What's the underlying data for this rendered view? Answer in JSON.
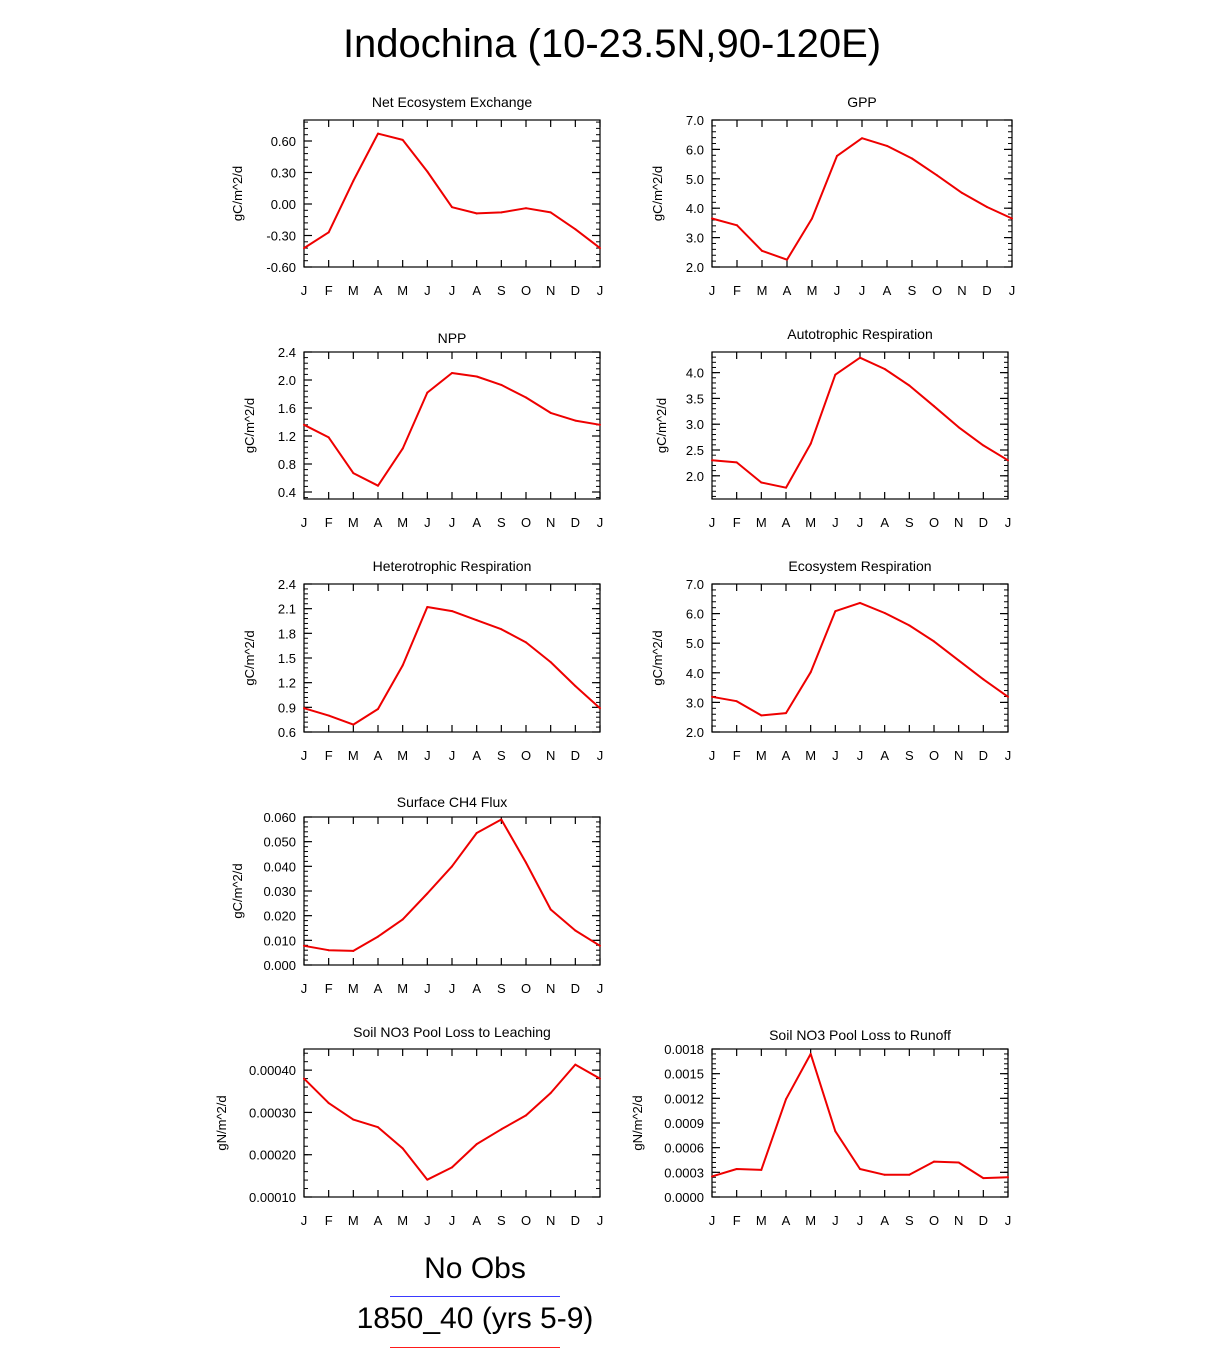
{
  "title": "Indochina (10-23.5N,90-120E)",
  "month_labels": [
    "J",
    "F",
    "M",
    "A",
    "M",
    "J",
    "J",
    "A",
    "S",
    "O",
    "N",
    "D",
    "J"
  ],
  "legend": [
    {
      "label": "No Obs",
      "color": "#3a3aff"
    },
    {
      "label": "1850_40 (yrs 5-9)",
      "color": "#ff1a1a"
    }
  ],
  "series_color": "#ee0000",
  "chart_data": [
    {
      "type": "line",
      "title": "Net Ecosystem Exchange",
      "ylabel": "gC/m^2/d",
      "ylim": [
        -0.6,
        0.8
      ],
      "yticks": [
        -0.6,
        -0.3,
        0.0,
        0.3,
        0.6
      ],
      "ytick_labels": [
        "-0.60",
        "-0.30",
        "0.00",
        "0.30",
        "0.60"
      ],
      "values": [
        -0.42,
        -0.27,
        0.22,
        0.67,
        0.61,
        0.31,
        -0.03,
        -0.09,
        -0.08,
        -0.04,
        -0.08,
        -0.24,
        -0.42
      ]
    },
    {
      "type": "line",
      "title": "GPP",
      "ylabel": "gC/m^2/d",
      "ylim": [
        2.0,
        7.0
      ],
      "yticks": [
        2,
        3,
        4,
        5,
        6,
        7
      ],
      "ytick_labels": [
        "2.0",
        "3.0",
        "4.0",
        "5.0",
        "6.0",
        "7.0"
      ],
      "values": [
        3.65,
        3.42,
        2.55,
        2.25,
        3.65,
        5.78,
        6.38,
        6.12,
        5.69,
        5.12,
        4.52,
        4.04,
        3.65
      ]
    },
    {
      "type": "line",
      "title": "NPP",
      "ylabel": "gC/m^2/d",
      "ylim": [
        0.3,
        2.4
      ],
      "yticks": [
        0.4,
        0.8,
        1.2,
        1.6,
        2.0,
        2.4
      ],
      "ytick_labels": [
        "0.4",
        "0.8",
        "1.2",
        "1.6",
        "2.0",
        "2.4"
      ],
      "values": [
        1.36,
        1.18,
        0.67,
        0.49,
        1.02,
        1.82,
        2.1,
        2.05,
        1.93,
        1.75,
        1.53,
        1.42,
        1.36
      ]
    },
    {
      "type": "line",
      "title": "Autotrophic Respiration",
      "ylabel": "gC/m^2/d",
      "ylim": [
        1.55,
        4.4
      ],
      "yticks": [
        2.0,
        2.5,
        3.0,
        3.5,
        4.0
      ],
      "ytick_labels": [
        "2.0",
        "2.5",
        "3.0",
        "3.5",
        "4.0"
      ],
      "values": [
        2.3,
        2.26,
        1.87,
        1.77,
        2.62,
        3.96,
        4.29,
        4.07,
        3.75,
        3.35,
        2.94,
        2.59,
        2.3
      ]
    },
    {
      "type": "line",
      "title": "Heterotrophic Respiration",
      "ylabel": "gC/m^2/d",
      "ylim": [
        0.6,
        2.4
      ],
      "yticks": [
        0.6,
        0.9,
        1.2,
        1.5,
        1.8,
        2.1,
        2.4
      ],
      "ytick_labels": [
        "0.6",
        "0.9",
        "1.2",
        "1.5",
        "1.8",
        "2.1",
        "2.4"
      ],
      "values": [
        0.89,
        0.8,
        0.69,
        0.88,
        1.41,
        2.12,
        2.07,
        1.96,
        1.85,
        1.69,
        1.45,
        1.16,
        0.89
      ]
    },
    {
      "type": "line",
      "title": "Ecosystem Respiration",
      "ylabel": "gC/m^2/d",
      "ylim": [
        2.0,
        7.0
      ],
      "yticks": [
        2,
        3,
        4,
        5,
        6,
        7
      ],
      "ytick_labels": [
        "2.0",
        "3.0",
        "4.0",
        "5.0",
        "6.0",
        "7.0"
      ],
      "values": [
        3.19,
        3.04,
        2.56,
        2.64,
        4.02,
        6.08,
        6.36,
        6.02,
        5.6,
        5.06,
        4.42,
        3.78,
        3.19
      ]
    },
    {
      "type": "line",
      "title": "Surface CH4 Flux",
      "ylabel": "gC/m^2/d",
      "ylim": [
        0.0,
        0.06
      ],
      "yticks": [
        0,
        0.01,
        0.02,
        0.03,
        0.04,
        0.05,
        0.06
      ],
      "ytick_labels": [
        "0.000",
        "0.010",
        "0.020",
        "0.030",
        "0.040",
        "0.050",
        "0.060"
      ],
      "values": [
        0.0078,
        0.006,
        0.0057,
        0.0115,
        0.0185,
        0.029,
        0.04,
        0.0535,
        0.059,
        0.0415,
        0.0225,
        0.014,
        0.0078
      ]
    },
    {
      "type": "line",
      "title": "Soil NO3 Pool Loss to Leaching",
      "ylabel": "gN/m^2/d",
      "ylim": [
        0.0001,
        0.00045
      ],
      "yticks": [
        0.0001,
        0.0002,
        0.0003,
        0.0004
      ],
      "ytick_labels": [
        "0.00010",
        "0.00020",
        "0.00030",
        "0.00040"
      ],
      "values": [
        0.00038,
        0.000322,
        0.000283,
        0.000265,
        0.000215,
        0.000141,
        0.00017,
        0.000225,
        0.00026,
        0.000293,
        0.000346,
        0.000413,
        0.00038
      ]
    },
    {
      "type": "line",
      "title": "Soil NO3 Pool Loss to Runoff",
      "ylabel": "gN/m^2/d",
      "ylim": [
        0.0,
        0.0018
      ],
      "yticks": [
        0,
        0.0003,
        0.0006,
        0.0009,
        0.0012,
        0.0015,
        0.0018
      ],
      "ytick_labels": [
        "0.0000",
        "0.0003",
        "0.0006",
        "0.0009",
        "0.0012",
        "0.0015",
        "0.0018"
      ],
      "values": [
        0.00025,
        0.00034,
        0.00033,
        0.00119,
        0.00174,
        0.0008,
        0.00034,
        0.00027,
        0.00027,
        0.00043,
        0.00042,
        0.00023,
        0.00024
      ]
    }
  ]
}
